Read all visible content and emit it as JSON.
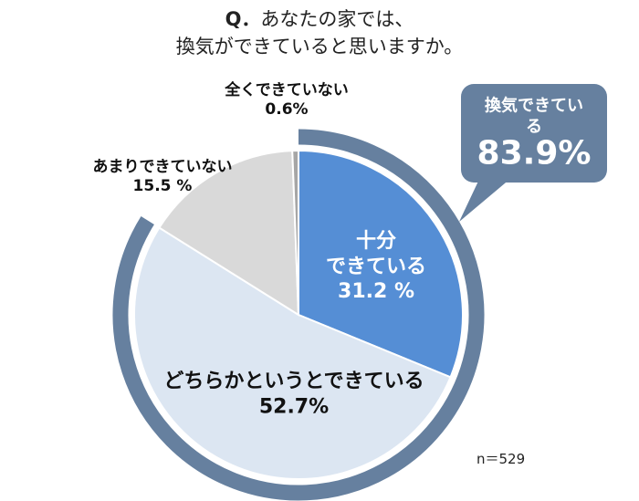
{
  "chart_data": {
    "type": "pie",
    "question_label": "Q．",
    "title": "あなたの家では、\n換気ができていると思いますか。",
    "categories": [
      "十分\nできている",
      "どちらかというとできている",
      "あまりできていない",
      "全くできていない"
    ],
    "values": [
      31.2,
      52.7,
      15.5,
      0.6
    ],
    "value_labels": [
      "31.2 %",
      "52.7%",
      "15.5 %",
      "0.6%"
    ],
    "colors": [
      "#558ed5",
      "#dce6f2",
      "#d9d9d9",
      "#a6a6a6"
    ],
    "annotation": {
      "text": "換気できている",
      "value": 83.9,
      "value_label": "83.9%",
      "color": "#66809f"
    },
    "note": "n＝529"
  }
}
